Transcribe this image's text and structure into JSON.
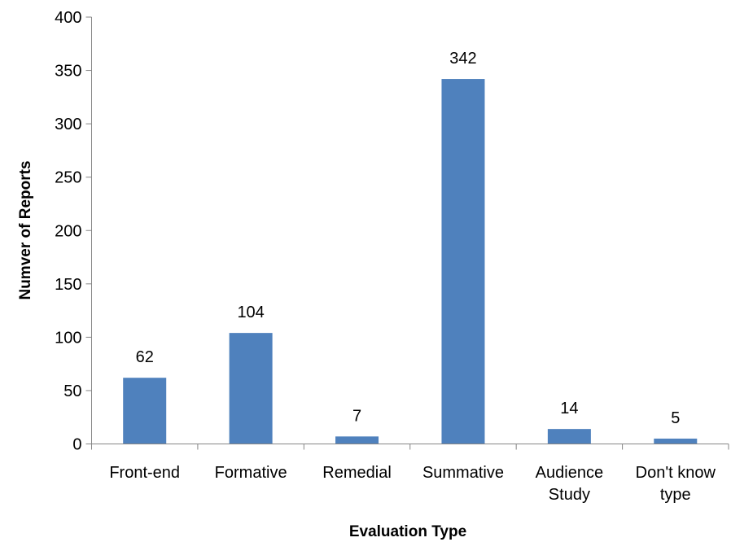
{
  "chart_data": {
    "type": "bar",
    "categories": [
      [
        "Front-end"
      ],
      [
        "Formative"
      ],
      [
        "Remedial"
      ],
      [
        "Summative"
      ],
      [
        "Audience",
        "Study"
      ],
      [
        "Don't know",
        "type"
      ]
    ],
    "values": [
      62,
      104,
      7,
      342,
      14,
      5
    ],
    "data_labels": [
      "62",
      "104",
      "7",
      "342",
      "14",
      "5"
    ],
    "title": "",
    "xlabel": "Evaluation Type",
    "ylabel": "Numver of Reports",
    "ylim": [
      0,
      400
    ],
    "yticks": [
      0,
      50,
      100,
      150,
      200,
      250,
      300,
      350,
      400
    ],
    "grid": false,
    "legend": "none",
    "bar_color": "#4f81bd"
  }
}
